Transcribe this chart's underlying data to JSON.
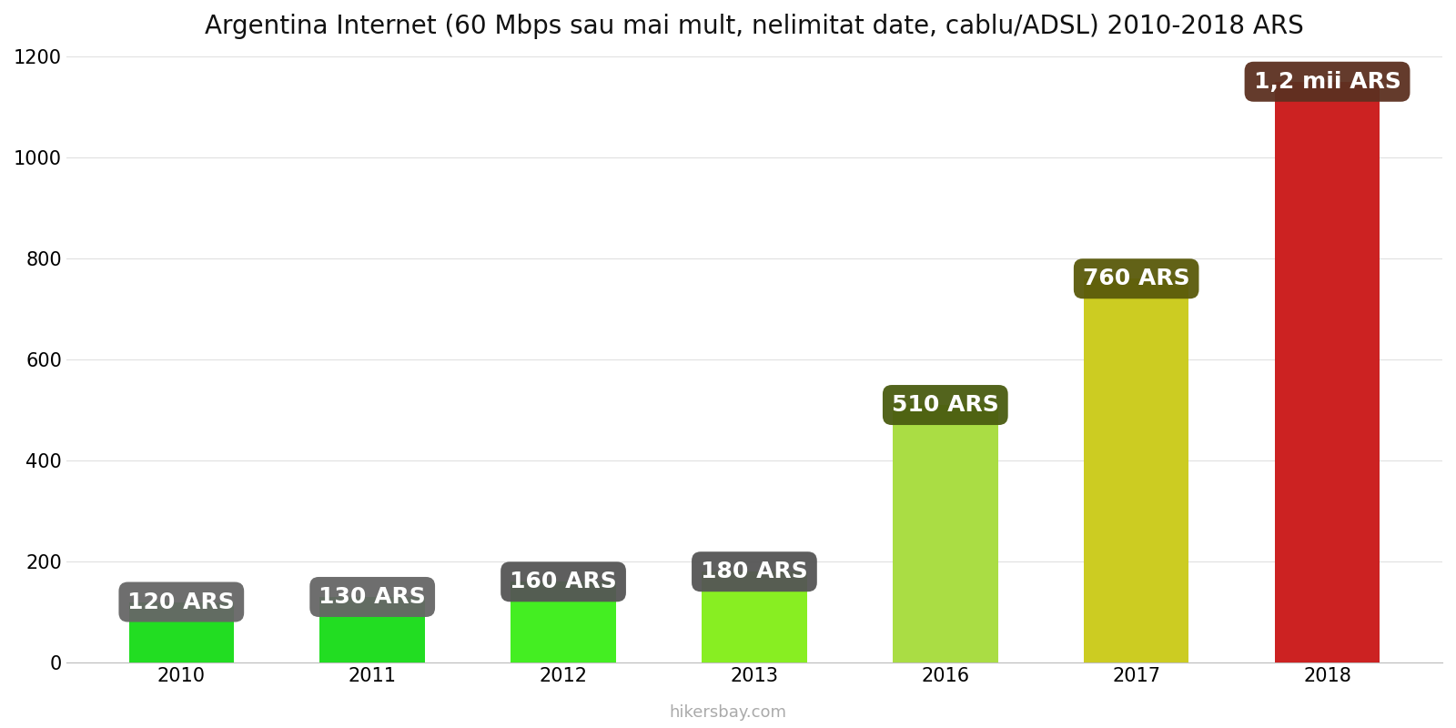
{
  "title": "Argentina Internet (60 Mbps sau mai mult, nelimitat date, cablu/ADSL) 2010-2018 ARS",
  "years": [
    2010,
    2011,
    2012,
    2013,
    2016,
    2017,
    2018
  ],
  "values": [
    120,
    130,
    160,
    180,
    510,
    760,
    1150
  ],
  "labels": [
    "120 ARS",
    "130 ARS",
    "160 ARS",
    "180 ARS",
    "510 ARS",
    "760 ARS",
    "1,2 mii ARS"
  ],
  "bar_colors": [
    "#22dd22",
    "#22dd22",
    "#44ee22",
    "#88ee22",
    "#aadd44",
    "#cccc22",
    "#cc2222"
  ],
  "label_bg_colors": [
    "#666666",
    "#666666",
    "#555555",
    "#555555",
    "#4a5c10",
    "#5a5a0a",
    "#5c3020"
  ],
  "ylim": [
    0,
    1200
  ],
  "yticks": [
    0,
    200,
    400,
    600,
    800,
    1000,
    1200
  ],
  "watermark": "hikersbay.com",
  "bar_width": 0.55,
  "background_color": "#ffffff",
  "title_fontsize": 20,
  "label_fontsize": 18,
  "tick_fontsize": 15
}
